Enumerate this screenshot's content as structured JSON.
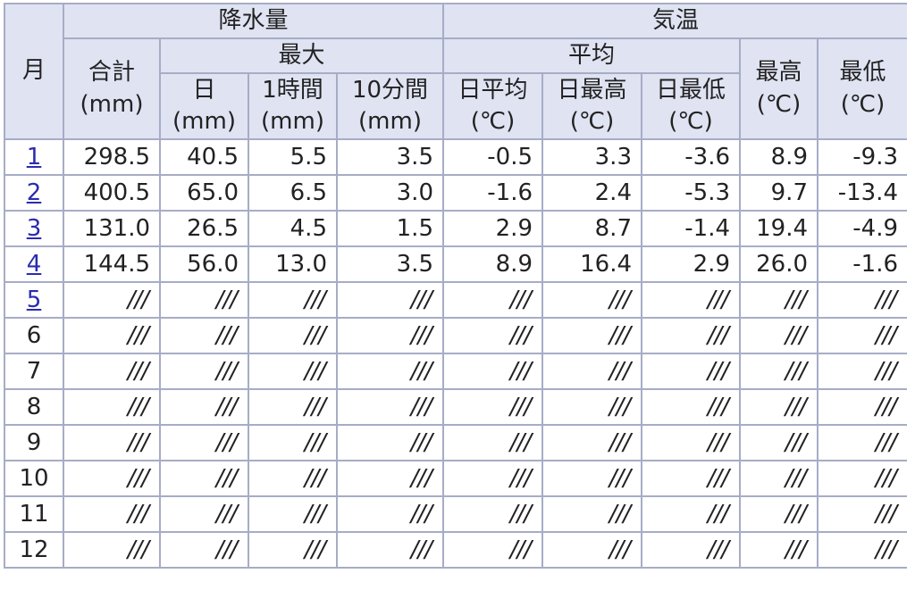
{
  "headers": {
    "month": "月",
    "precipitation": "降水量",
    "temperature": "気温",
    "precip_total": "合計",
    "precip_max": "最大",
    "temp_mean": "平均",
    "temp_highest": "最高",
    "temp_lowest": "最低",
    "max_day": "日",
    "max_1h": "1時間",
    "max_10min": "10分間",
    "mean_daily": "日平均",
    "mean_daily_max": "日最高",
    "mean_daily_min": "日最低",
    "unit_mm": "(mm)",
    "unit_c": "(℃)"
  },
  "rows": [
    {
      "month": "1",
      "link": true,
      "values": [
        "298.5",
        "40.5",
        "5.5",
        "3.5",
        "-0.5",
        "3.3",
        "-3.6",
        "8.9",
        "-9.3"
      ]
    },
    {
      "month": "2",
      "link": true,
      "values": [
        "400.5",
        "65.0",
        "6.5",
        "3.0",
        "-1.6",
        "2.4",
        "-5.3",
        "9.7",
        "-13.4"
      ]
    },
    {
      "month": "3",
      "link": true,
      "values": [
        "131.0",
        "26.5",
        "4.5",
        "1.5",
        "2.9",
        "8.7",
        "-1.4",
        "19.4",
        "-4.9"
      ]
    },
    {
      "month": "4",
      "link": true,
      "values": [
        "144.5",
        "56.0",
        "13.0",
        "3.5",
        "8.9",
        "16.4",
        "2.9",
        "26.0",
        "-1.6"
      ]
    },
    {
      "month": "5",
      "link": true,
      "values": [
        "///",
        "///",
        "///",
        "///",
        "///",
        "///",
        "///",
        "///",
        "///"
      ]
    },
    {
      "month": "6",
      "link": false,
      "values": [
        "///",
        "///",
        "///",
        "///",
        "///",
        "///",
        "///",
        "///",
        "///"
      ]
    },
    {
      "month": "7",
      "link": false,
      "values": [
        "///",
        "///",
        "///",
        "///",
        "///",
        "///",
        "///",
        "///",
        "///"
      ]
    },
    {
      "month": "8",
      "link": false,
      "values": [
        "///",
        "///",
        "///",
        "///",
        "///",
        "///",
        "///",
        "///",
        "///"
      ]
    },
    {
      "month": "9",
      "link": false,
      "values": [
        "///",
        "///",
        "///",
        "///",
        "///",
        "///",
        "///",
        "///",
        "///"
      ]
    },
    {
      "month": "10",
      "link": false,
      "values": [
        "///",
        "///",
        "///",
        "///",
        "///",
        "///",
        "///",
        "///",
        "///"
      ]
    },
    {
      "month": "11",
      "link": false,
      "values": [
        "///",
        "///",
        "///",
        "///",
        "///",
        "///",
        "///",
        "///",
        "///"
      ]
    },
    {
      "month": "12",
      "link": false,
      "values": [
        "///",
        "///",
        "///",
        "///",
        "///",
        "///",
        "///",
        "///",
        "///"
      ]
    }
  ]
}
